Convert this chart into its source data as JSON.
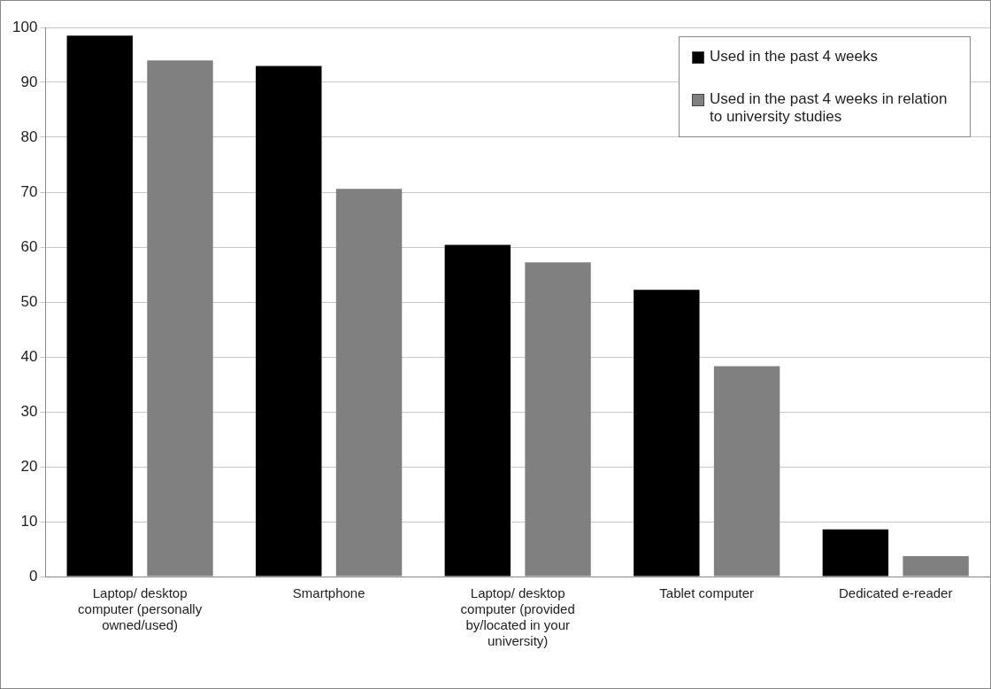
{
  "chart_data": {
    "type": "bar",
    "categories": [
      "Laptop/ desktop computer (personally owned/used)",
      "Smartphone",
      "Laptop/ desktop computer (provided by/located in your university)",
      "Tablet computer",
      "Dedicated e-reader"
    ],
    "series": [
      {
        "name": "Used in the past 4 weeks",
        "color": "#000000",
        "values": [
          98.5,
          93,
          60.4,
          52.2,
          8.6
        ]
      },
      {
        "name": "Used in the past 4 weeks in relation to university studies",
        "color": "#808080",
        "values": [
          94,
          70.6,
          57.2,
          38.3,
          3.7
        ]
      }
    ],
    "ylim": [
      0,
      100
    ],
    "yticks": [
      0,
      10,
      20,
      30,
      40,
      50,
      60,
      70,
      80,
      90,
      100
    ],
    "grid": "y",
    "legend": "top right"
  }
}
